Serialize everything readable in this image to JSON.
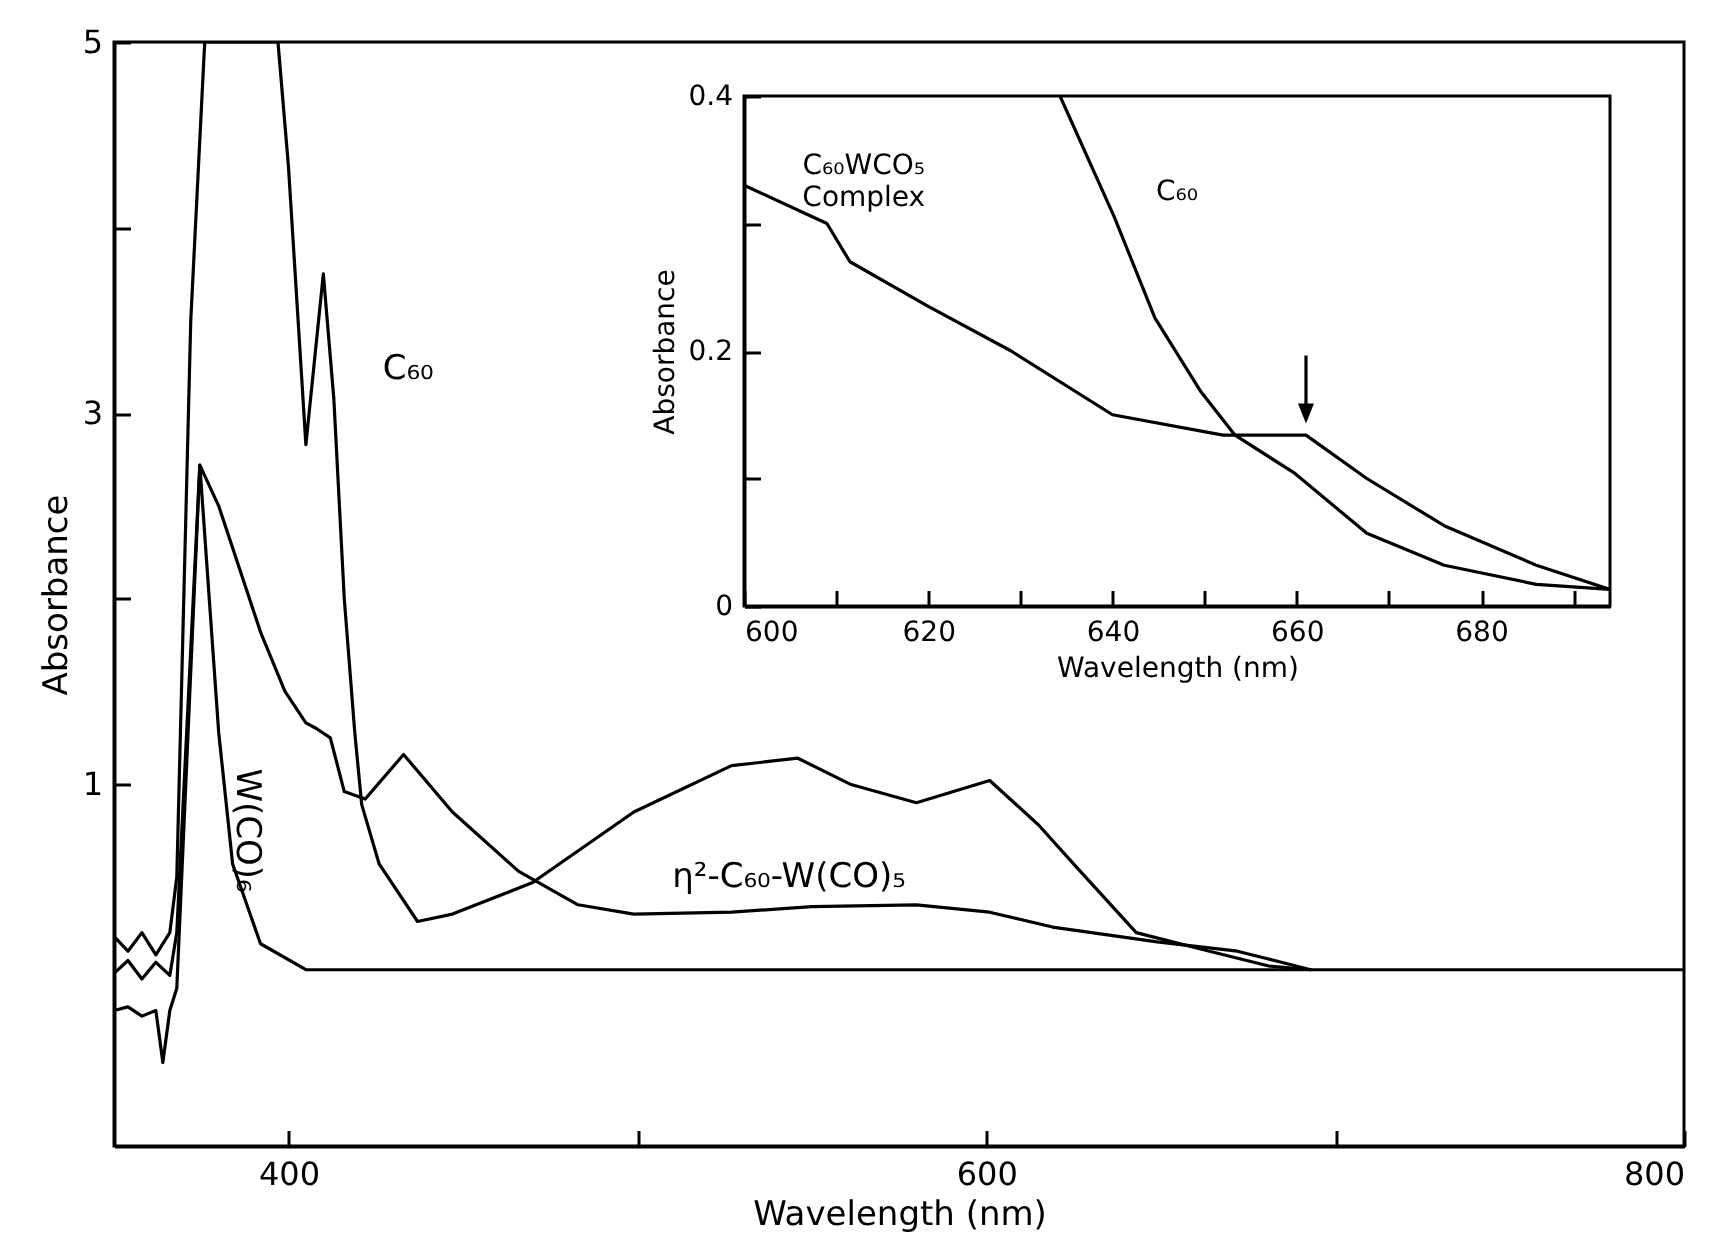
{
  "chart_data": [
    {
      "type": "line",
      "xlabel": "Wavelength (nm)",
      "ylabel": "Absorbance",
      "xlim": [
        350,
        800
      ],
      "ylim": [
        -0.95,
        5
      ],
      "xticks": [
        400,
        {
          "value": 500,
          "label": null
        },
        600,
        {
          "value": 700,
          "label": null
        },
        800
      ],
      "yticks": [
        1,
        {
          "value": 2,
          "label": null
        },
        3,
        {
          "value": 4,
          "label": null
        },
        5
      ],
      "series": [
        {
          "name": "C₆₀",
          "color": "#000000",
          "x": [
            350,
            354,
            358,
            362,
            366,
            368,
            372,
            376,
            386,
            397,
            400,
            405,
            410,
            413,
            416,
            419,
            421,
            426,
            437,
            447,
            470,
            499,
            527,
            546,
            561,
            580,
            601,
            615,
            626,
            643,
            664,
            681,
            693
          ],
          "values": [
            0.18,
            0.1,
            0.2,
            0.08,
            0.2,
            0.5,
            3.5,
            5,
            5,
            5,
            4.33,
            2.83,
            3.75,
            3.08,
            2.0,
            1.28,
            0.89,
            0.57,
            0.26,
            0.3,
            0.47,
            0.85,
            1.1,
            1.14,
            1.0,
            0.9,
            1.02,
            0.78,
            0.55,
            0.2,
            0.1,
            0.02,
            0
          ]
        },
        {
          "name": "η²-C₆₀-W(CO)₅",
          "color": "#000000",
          "x": [
            350,
            354,
            358,
            362,
            366,
            368,
            374.6,
            380,
            392,
            399,
            405,
            408,
            412,
            416,
            422,
            433,
            447,
            466,
            483,
            499,
            527,
            550,
            580,
            601,
            619,
            649,
            672,
            693
          ],
          "values": [
            -0.02,
            0.05,
            -0.05,
            0.04,
            -0.03,
            0.2,
            2.72,
            2.5,
            1.82,
            1.5,
            1.33,
            1.3,
            1.25,
            0.96,
            0.92,
            1.16,
            0.85,
            0.53,
            0.35,
            0.3,
            0.31,
            0.34,
            0.35,
            0.31,
            0.23,
            0.15,
            0.1,
            0
          ]
        },
        {
          "name": "W(CO)₆",
          "color": "#000000",
          "x": [
            350,
            354,
            358,
            362,
            364,
            366,
            368,
            374.6,
            380,
            384,
            392,
            405,
            800
          ],
          "values": [
            -0.22,
            -0.2,
            -0.25,
            -0.22,
            -0.5,
            -0.22,
            -0.1,
            2.72,
            1.28,
            0.57,
            0.14,
            0,
            0
          ]
        }
      ]
    },
    {
      "type": "line",
      "xlabel": "Wavelength (nm)",
      "ylabel": "Absorbance",
      "xlim": [
        600,
        694
      ],
      "ylim": [
        0,
        0.4
      ],
      "xticks": [
        600,
        {
          "value": 610,
          "label": null
        },
        620,
        {
          "value": 630,
          "label": null
        },
        640,
        {
          "value": 650,
          "label": null
        },
        660,
        {
          "value": 670,
          "label": null
        },
        680,
        {
          "value": 690,
          "label": null
        }
      ],
      "yticks": [
        0,
        {
          "value": 0.1,
          "label": null
        },
        0.2,
        {
          "value": 0.3,
          "label": null
        },
        0.4
      ],
      "series": [
        {
          "name": "C₆₀WCO₅ Complex",
          "color": "#000000",
          "x": [
            600,
            609,
            611.5,
            620,
            629,
            640,
            652,
            661,
            667.6,
            676,
            686,
            694
          ],
          "values": [
            0.33,
            0.3,
            0.27,
            0.235,
            0.2,
            0.15,
            0.134,
            0.134,
            0.1,
            0.063,
            0.032,
            0.013
          ]
        },
        {
          "name": "C₆₀",
          "color": "#000000",
          "x": [
            634.3,
            640.2,
            644.6,
            649.6,
            653.3,
            659.8,
            667.6,
            676,
            686,
            694
          ],
          "values": [
            0.4,
            0.305,
            0.226,
            0.168,
            0.134,
            0.104,
            0.057,
            0.032,
            0.017,
            0.013
          ]
        }
      ]
    }
  ]
}
